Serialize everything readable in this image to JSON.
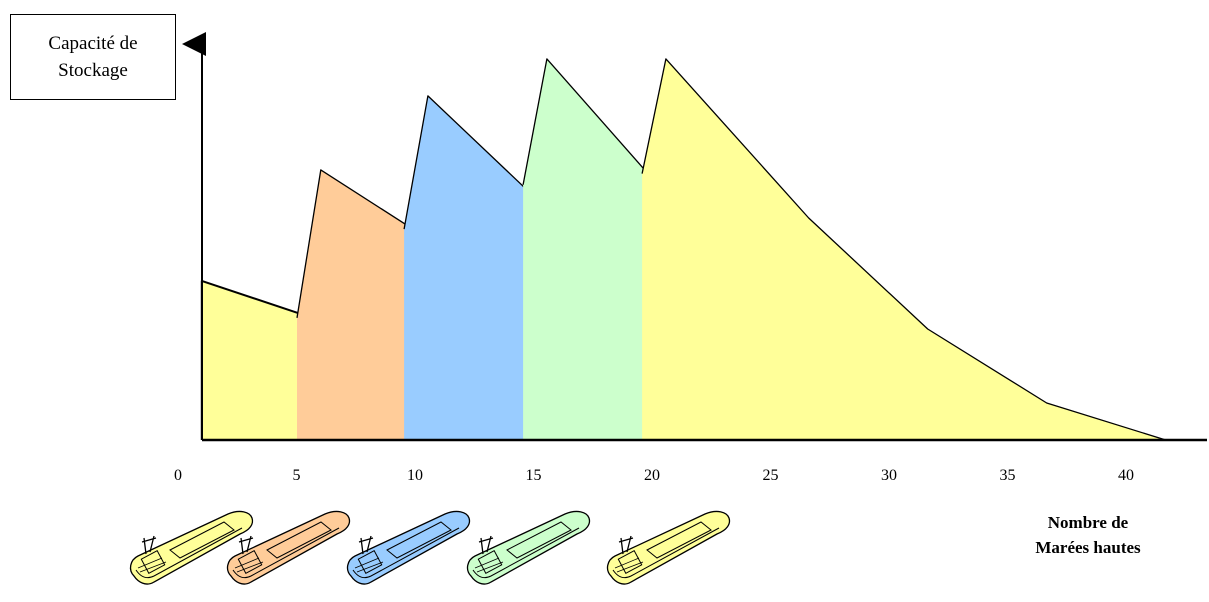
{
  "chart_data": {
    "type": "area",
    "ylabel_lines": [
      "Capacité de",
      "Stockage"
    ],
    "xlabel_lines": [
      "Nombre de",
      "Marées hautes"
    ],
    "x_ticks": [
      "0",
      "5",
      "10",
      "15",
      "20",
      "25",
      "30",
      "35",
      "40"
    ],
    "xlim": [
      0,
      42
    ],
    "ylim": [
      0,
      100
    ],
    "grid": false,
    "series": [
      {
        "color": "#FFFF99",
        "points": [
          [
            1,
            43
          ],
          [
            21,
            0
          ]
        ]
      },
      {
        "color": "#FFCC99",
        "points": [
          [
            5,
            33
          ],
          [
            6,
            73
          ],
          [
            21,
            11
          ],
          [
            26,
            0
          ]
        ]
      },
      {
        "color": "#99CCFF",
        "points": [
          [
            9.5,
            57
          ],
          [
            10.5,
            93
          ],
          [
            20.5,
            32
          ],
          [
            25.5,
            10
          ],
          [
            30.5,
            0
          ]
        ]
      },
      {
        "color": "#CCFFCC",
        "points": [
          [
            14.5,
            69
          ],
          [
            15.5,
            103
          ],
          [
            25.5,
            30
          ],
          [
            30.5,
            10
          ],
          [
            35.5,
            0
          ]
        ]
      },
      {
        "color": "#FFFF99",
        "points": [
          [
            19.5,
            72
          ],
          [
            20.5,
            103
          ],
          [
            26.5,
            60
          ],
          [
            31.5,
            30
          ],
          [
            36.5,
            10
          ],
          [
            41.5,
            0
          ]
        ]
      }
    ],
    "boats": [
      {
        "name": "boat-yellow-1",
        "hull": "#FFFF99"
      },
      {
        "name": "boat-orange",
        "hull": "#FFCC99"
      },
      {
        "name": "boat-blue",
        "hull": "#99CCFF"
      },
      {
        "name": "boat-green",
        "hull": "#CCFFCC"
      },
      {
        "name": "boat-yellow-2",
        "hull": "#FFFF99"
      }
    ]
  }
}
